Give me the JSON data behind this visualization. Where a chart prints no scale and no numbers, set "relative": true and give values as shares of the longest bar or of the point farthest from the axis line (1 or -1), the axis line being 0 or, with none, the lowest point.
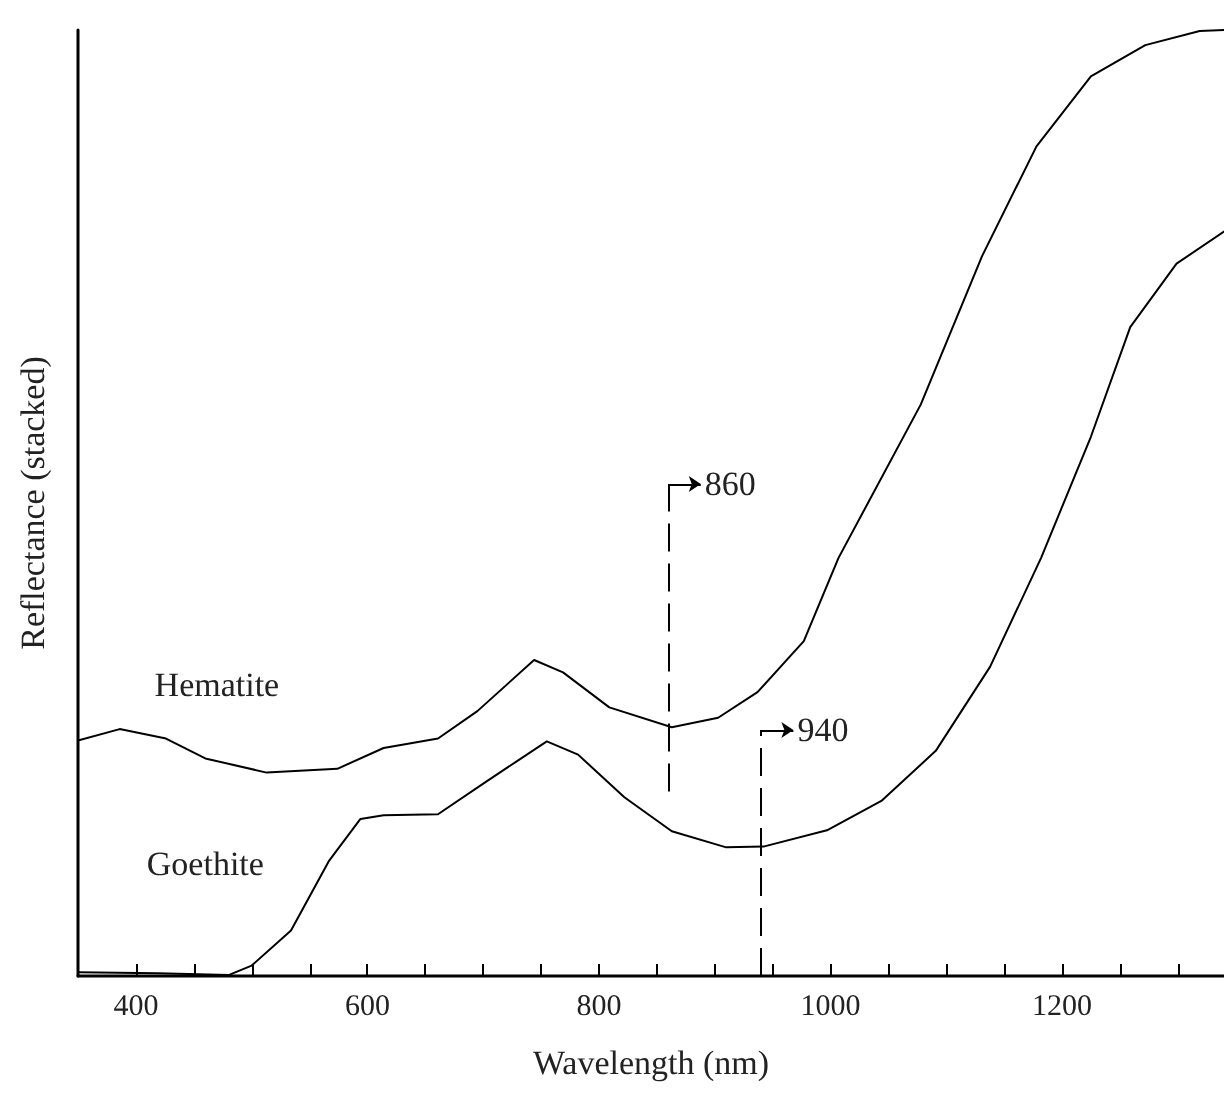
{
  "chart_data": {
    "type": "line",
    "relative": true,
    "xlabel": "Wavelength (nm)",
    "ylabel": "Reflectance (stacked)",
    "xlim": [
      350,
      1340
    ],
    "xticks": [
      400,
      {
        "value": 450,
        "label": null
      },
      {
        "value": 500,
        "label": null
      },
      {
        "value": 550,
        "label": null
      },
      600,
      {
        "value": 650,
        "label": null
      },
      {
        "value": 700,
        "label": null
      },
      {
        "value": 750,
        "label": null
      },
      800,
      {
        "value": 850,
        "label": null
      },
      {
        "value": 900,
        "label": null
      },
      {
        "value": 950,
        "label": null
      },
      1000,
      {
        "value": 1050,
        "label": null
      },
      {
        "value": 1100,
        "label": null
      },
      {
        "value": 1150,
        "label": null
      },
      1200,
      {
        "value": 1250,
        "label": null
      },
      {
        "value": 1300,
        "label": null
      }
    ],
    "grid": false,
    "legend": false,
    "marker": "none",
    "line_style": "solid",
    "series": [
      {
        "name": "Hematite",
        "color": "#000000",
        "x": [
          350,
          386,
          426,
          460,
          513,
          574,
          614,
          661,
          695,
          744,
          769,
          809,
          863,
          903,
          937,
          977,
          1007,
          1078,
          1131,
          1178,
          1225,
          1272,
          1319,
          1340
        ],
        "values": [
          0.249,
          0.261,
          0.251,
          0.23,
          0.215,
          0.219,
          0.241,
          0.251,
          0.28,
          0.334,
          0.321,
          0.284,
          0.263,
          0.273,
          0.3,
          0.354,
          0.442,
          0.604,
          0.761,
          0.877,
          0.951,
          0.984,
          0.999,
          1.0
        ]
      },
      {
        "name": "Goethite",
        "color": "#000000",
        "x": [
          350,
          419,
          480,
          500,
          534,
          567,
          594,
          614,
          661,
          702,
          755,
          782,
          822,
          863,
          910,
          943,
          997,
          1044,
          1091,
          1138,
          1182,
          1225,
          1259,
          1299,
          1340
        ],
        "values": [
          0.004,
          0.003,
          0.001,
          0.011,
          0.048,
          0.122,
          0.166,
          0.17,
          0.171,
          0.205,
          0.248,
          0.234,
          0.189,
          0.153,
          0.136,
          0.137,
          0.154,
          0.185,
          0.238,
          0.327,
          0.442,
          0.57,
          0.686,
          0.753,
          0.787
        ]
      }
    ],
    "ref_lines": [
      {
        "axis": "x",
        "value": 860,
        "label": "860",
        "line_style": "dashed",
        "color": "#000000"
      },
      {
        "axis": "x",
        "value": 940,
        "label": "940",
        "line_style": "dashed",
        "color": "#000000"
      }
    ]
  }
}
